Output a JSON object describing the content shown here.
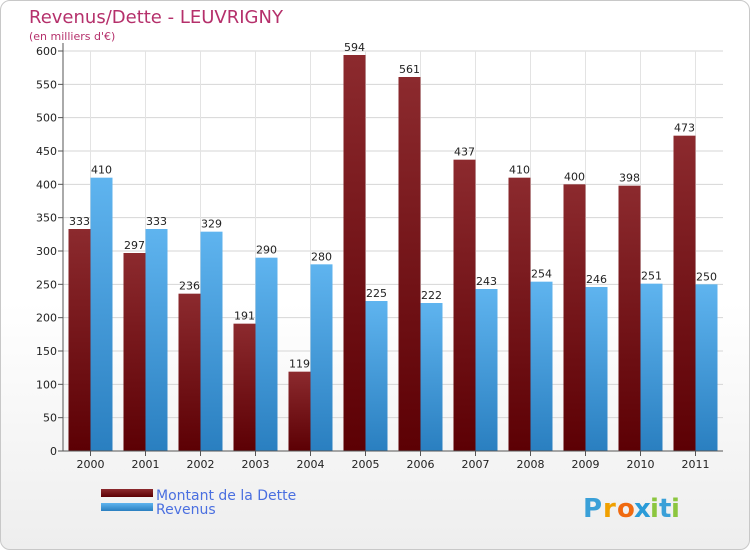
{
  "chart_data": {
    "type": "bar",
    "title": "Revenus/Dette - LEUVRIGNY",
    "subtitle": "(en milliers d'€)",
    "categories": [
      "2000",
      "2001",
      "2002",
      "2003",
      "2004",
      "2005",
      "2006",
      "2007",
      "2008",
      "2009",
      "2010",
      "2011"
    ],
    "series": [
      {
        "name": "Montant de la Dette",
        "values": [
          333,
          297,
          236,
          191,
          119,
          594,
          561,
          437,
          410,
          400,
          398,
          473
        ],
        "color": "#7a1418"
      },
      {
        "name": "Revenus",
        "values": [
          410,
          333,
          329,
          290,
          280,
          225,
          222,
          243,
          254,
          246,
          251,
          250
        ],
        "color": "#4ea6e8"
      }
    ],
    "ylim": [
      0,
      600
    ],
    "yticks": [
      0,
      50,
      100,
      150,
      200,
      250,
      300,
      350,
      400,
      450,
      500,
      550,
      600
    ],
    "grid": true,
    "legend_position": "bottom-left"
  },
  "logo": {
    "letters": [
      "P",
      "r",
      "o",
      "x",
      "i",
      "t",
      "i"
    ],
    "colors": [
      "#3aa0d8",
      "#f0a000",
      "#f06a10",
      "#2a9bd8",
      "#8cc63f",
      "#3aa0d8",
      "#8cc63f"
    ]
  }
}
